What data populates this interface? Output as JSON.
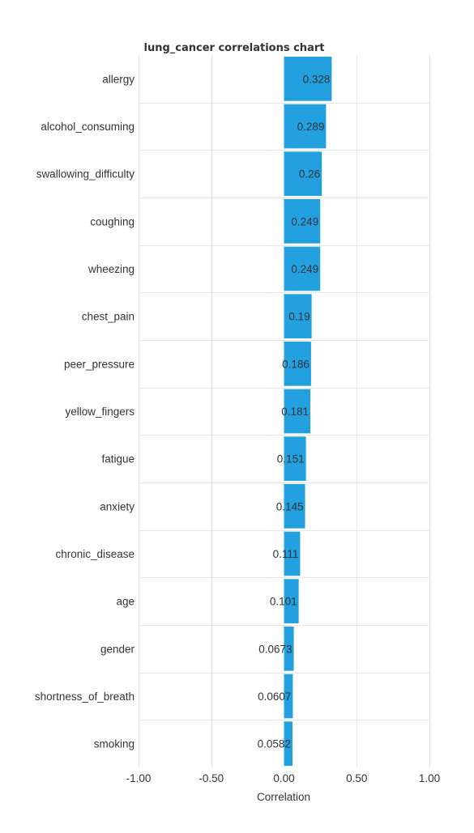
{
  "chart_data": {
    "type": "bar",
    "orientation": "horizontal",
    "title": "lung_cancer correlations chart",
    "xlabel": "Correlation",
    "ylabel": "",
    "xlim": [
      -1.0,
      1.0
    ],
    "x_ticks": [
      -1.0,
      -0.5,
      0.0,
      0.5,
      1.0
    ],
    "x_tick_labels": [
      "-1.00",
      "-0.50",
      "0.00",
      "0.50",
      "1.00"
    ],
    "grid": true,
    "legend": "none",
    "bar_color": "#22a0e0",
    "categories": [
      "allergy",
      "alcohol_consuming",
      "swallowing_difficulty",
      "coughing",
      "wheezing",
      "chest_pain",
      "peer_pressure",
      "yellow_fingers",
      "fatigue",
      "anxiety",
      "chronic_disease",
      "age",
      "gender",
      "shortness_of_breath",
      "smoking"
    ],
    "values": [
      0.328,
      0.289,
      0.26,
      0.249,
      0.249,
      0.19,
      0.186,
      0.181,
      0.151,
      0.145,
      0.111,
      0.101,
      0.0673,
      0.0607,
      0.0582
    ],
    "value_labels": [
      "0.328",
      "0.289",
      "0.26",
      "0.249",
      "0.249",
      "0.19",
      "0.186",
      "0.181",
      "0.151",
      "0.145",
      "0.111",
      "0.101",
      "0.0673",
      "0.0607",
      "0.0582"
    ]
  }
}
